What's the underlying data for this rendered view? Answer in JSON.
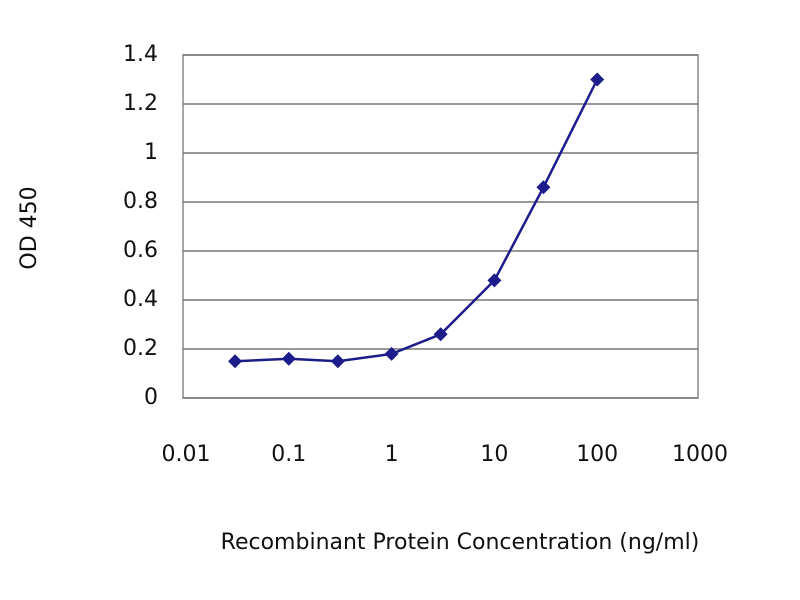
{
  "chart_data": {
    "type": "line",
    "x_label": "Recombinant Protein Concentration (ng/ml)",
    "y_label": "OD 450",
    "x": [
      0.03,
      0.1,
      0.3,
      1,
      3,
      10,
      30,
      100
    ],
    "series": [
      {
        "color": "#1c1c8a",
        "values": [
          0.15,
          0.16,
          0.15,
          0.18,
          0.26,
          0.48,
          0.86,
          1.3
        ]
      }
    ],
    "x_log": true,
    "xlim": [
      0.01,
      1000
    ],
    "xticks": [
      0.01,
      0.1,
      1,
      10,
      100,
      1000
    ],
    "ylim": [
      0,
      1.4
    ],
    "yticks": [
      0,
      0.2,
      0.4,
      0.6,
      0.8,
      1,
      1.2,
      1.4
    ],
    "grid": true
  }
}
